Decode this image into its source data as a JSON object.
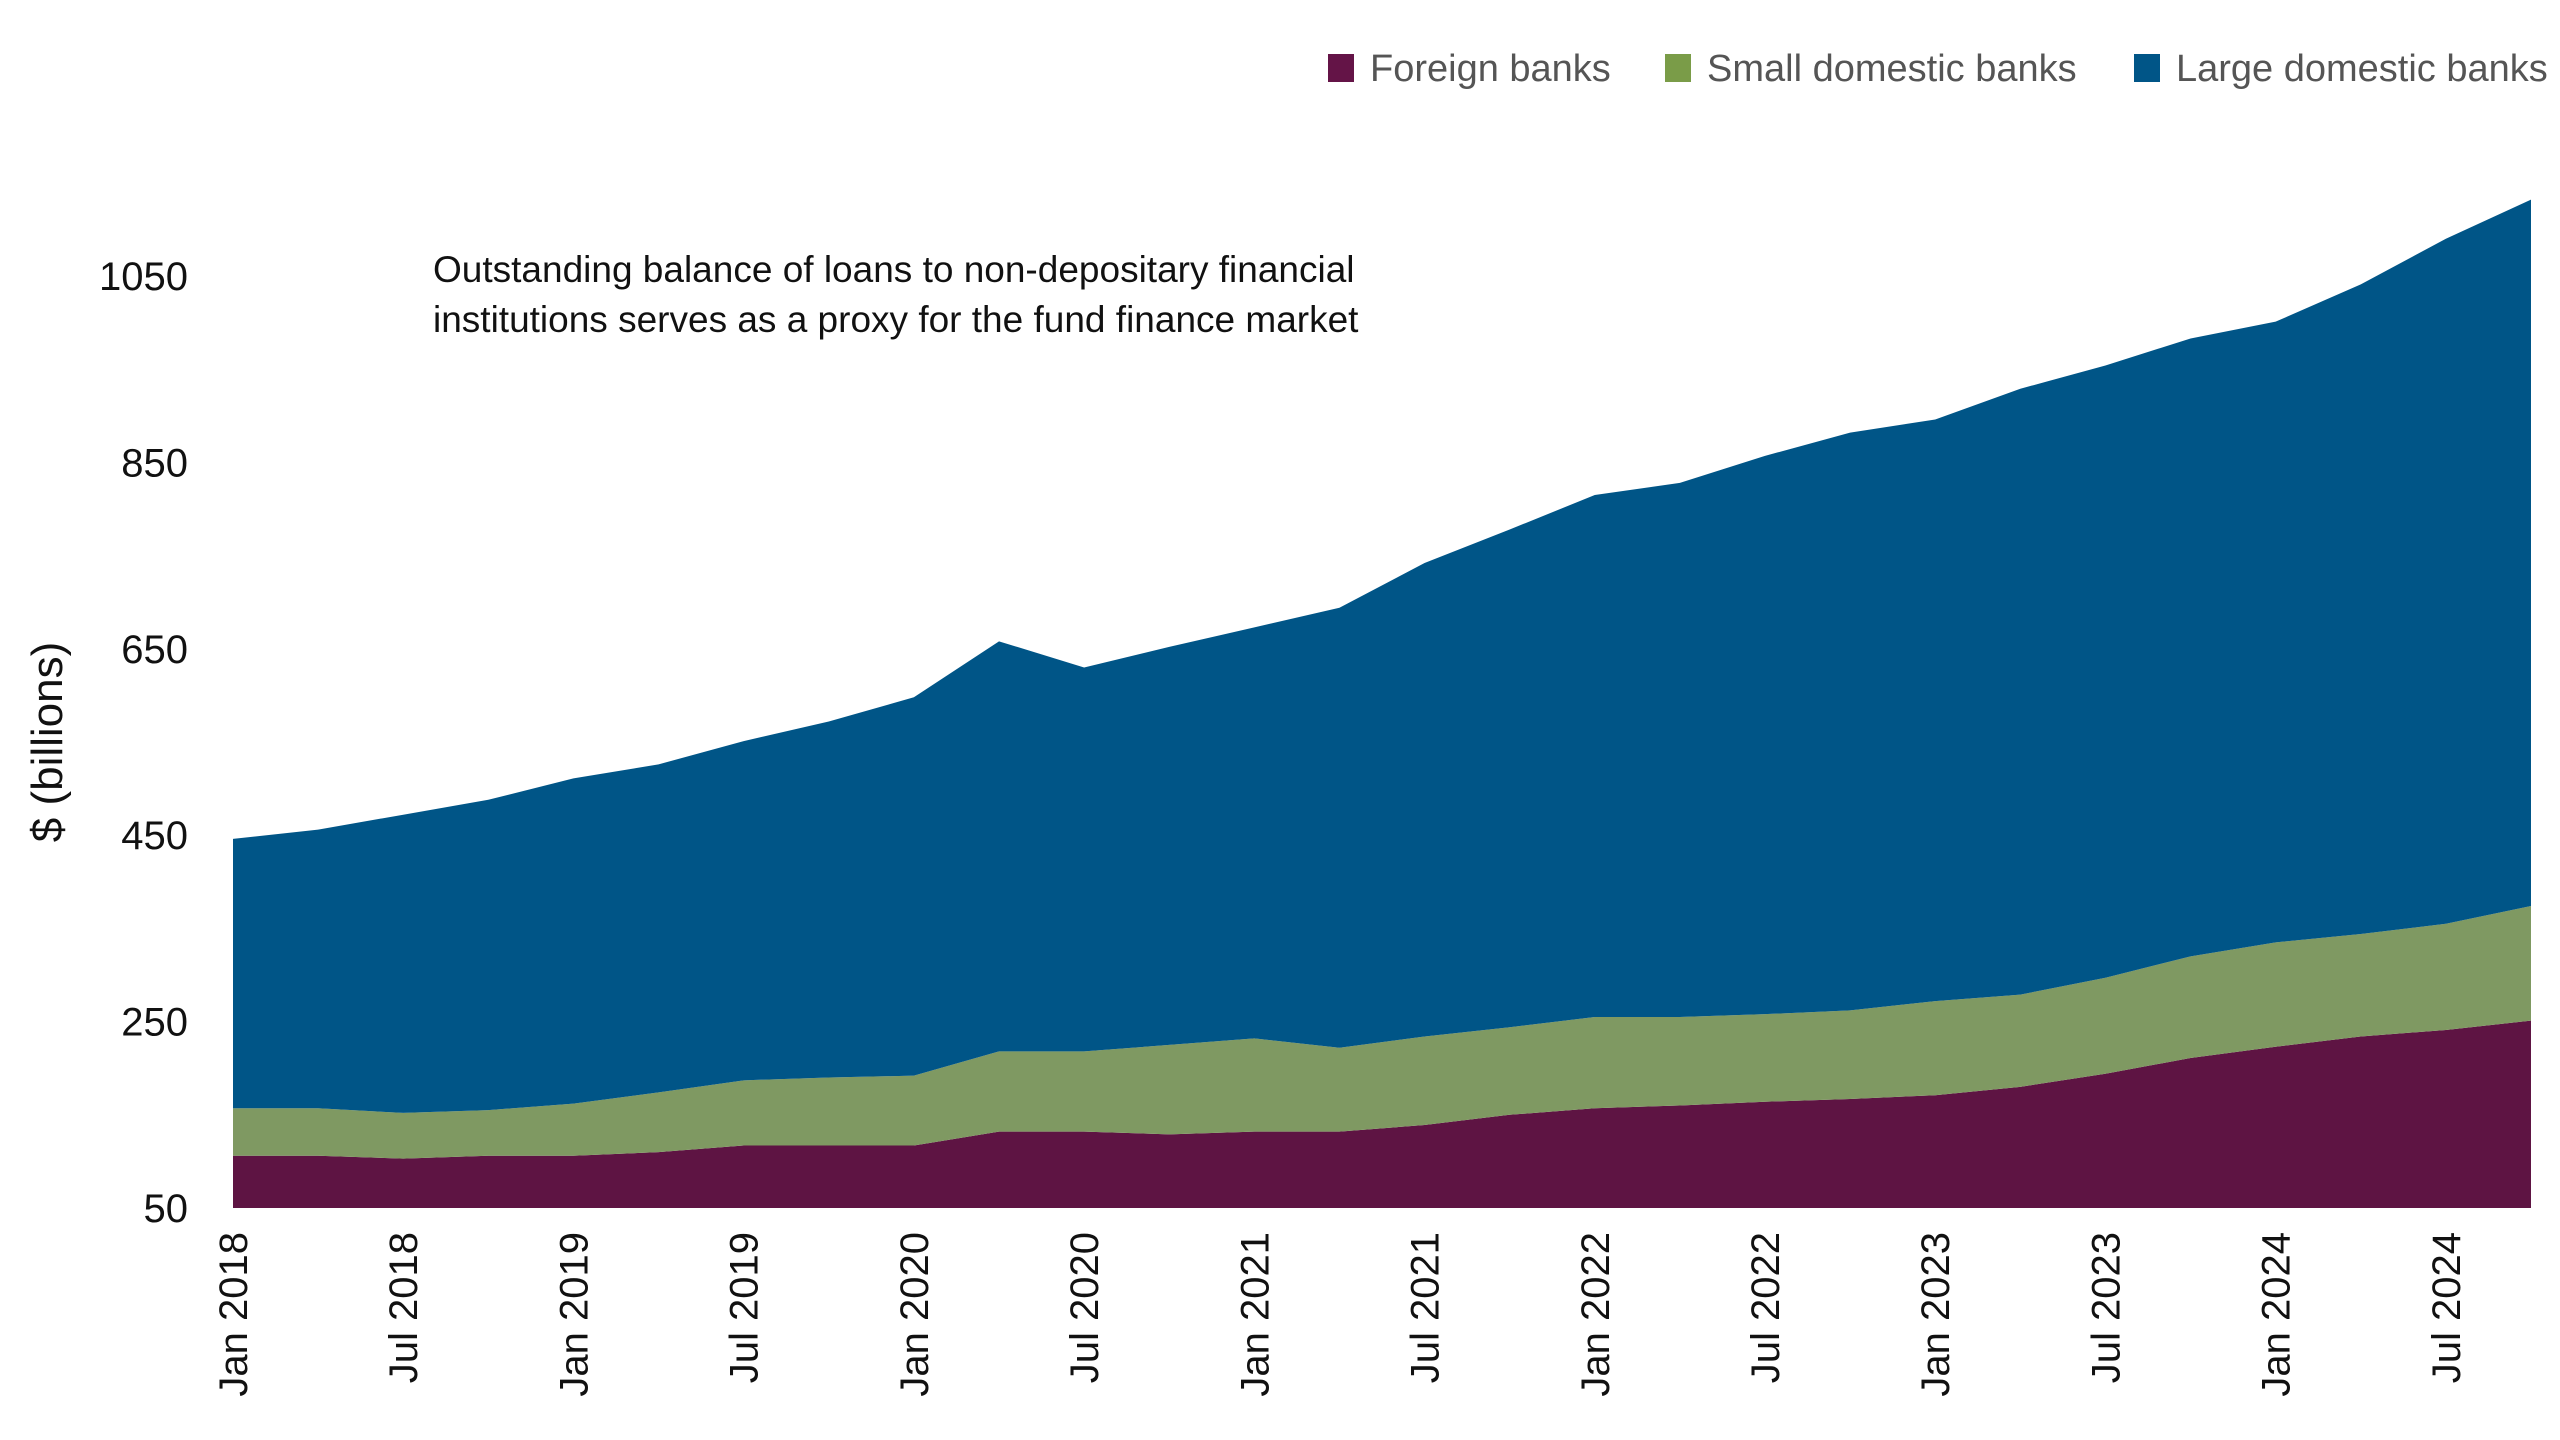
{
  "chart_data": {
    "type": "area",
    "stacked": true,
    "ylabel": "$ (billions)",
    "xlabel": "",
    "ylim": [
      50,
      1150
    ],
    "yticks": [
      50,
      250,
      450,
      650,
      850,
      1050
    ],
    "annotation": [
      "Outstanding balance of loans to non-depositary financial",
      "institutions serves as a proxy for the fund finance market"
    ],
    "legend_position": "top-right",
    "grid": false,
    "x": [
      "2018-01",
      "2018-04",
      "2018-07",
      "2018-10",
      "2019-01",
      "2019-04",
      "2019-07",
      "2019-10",
      "2020-01",
      "2020-04",
      "2020-07",
      "2020-10",
      "2021-01",
      "2021-04",
      "2021-07",
      "2021-10",
      "2022-01",
      "2022-04",
      "2022-07",
      "2022-10",
      "2023-01",
      "2023-04",
      "2023-07",
      "2023-10",
      "2024-01",
      "2024-04",
      "2024-07",
      "2024-10"
    ],
    "xtick_labels": [
      "Jan 2018",
      "Jul 2018",
      "Jan 2019",
      "Jul 2019",
      "Jan 2020",
      "Jul 2020",
      "Jan 2021",
      "Jul 2021",
      "Jan 2022",
      "Jul 2022",
      "Jan 2023",
      "Jul 2023",
      "Jan 2024",
      "Jul 2024"
    ],
    "series": [
      {
        "name": "Foreign banks",
        "color": "#5E1443",
        "legend_color": "#641447",
        "values": [
          106,
          106,
          103,
          106,
          106,
          110,
          117,
          117,
          117,
          132,
          132,
          129,
          132,
          132,
          139,
          150,
          157,
          160,
          164,
          167,
          171,
          180,
          194,
          211,
          223,
          234,
          241,
          251
        ]
      },
      {
        "name": "Small domestic banks",
        "color": "#7F9962",
        "legend_color": "#7A9C48",
        "values": [
          51,
          51,
          49,
          49,
          56,
          64,
          70,
          73,
          75,
          86,
          86,
          96,
          100,
          90,
          95,
          94,
          98,
          95,
          94,
          95,
          101,
          99,
          103,
          109,
          112,
          110,
          114,
          123
        ]
      },
      {
        "name": "Large domestic banks",
        "color": "#005587",
        "legend_color": "#005587",
        "values": [
          289,
          299,
          320,
          333,
          349,
          352,
          364,
          382,
          406,
          440,
          412,
          427,
          441,
          472,
          508,
          534,
          560,
          573,
          599,
          620,
          624,
          650,
          657,
          663,
          666,
          697,
          735,
          758
        ]
      }
    ]
  }
}
